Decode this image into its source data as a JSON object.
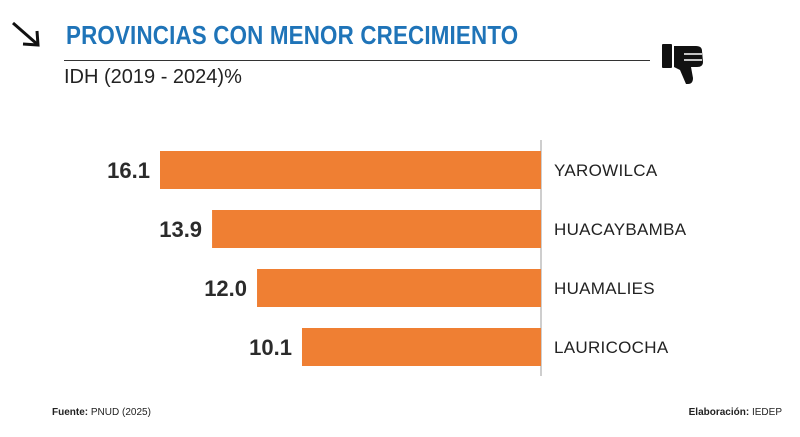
{
  "header": {
    "title": "PROVINCIAS CON MENOR CRECIMIENTO",
    "subtitle": "IDH (2019 - 2024)%",
    "accent_color": "#1f74b8",
    "left_icon": "arrow-down-right-icon",
    "right_icon": "thumbs-down-icon"
  },
  "chart_data": {
    "type": "bar",
    "orientation": "horizontal",
    "categories": [
      "YAROWILCA",
      "HUACAYBAMBA",
      "HUAMALIES",
      "LAURICOCHA"
    ],
    "values": [
      16.1,
      13.9,
      12.0,
      10.1
    ],
    "value_labels": [
      "16.1",
      "13.9",
      "12.0",
      "10.1"
    ],
    "bar_color": "#ef7f33",
    "xlim": [
      0,
      16.1
    ],
    "grid": false,
    "legend": "none"
  },
  "footer": {
    "source_label": "Fuente:",
    "source_value": "PNUD (2025)",
    "credit_label": "Elaboración:",
    "credit_value": "IEDEP"
  }
}
